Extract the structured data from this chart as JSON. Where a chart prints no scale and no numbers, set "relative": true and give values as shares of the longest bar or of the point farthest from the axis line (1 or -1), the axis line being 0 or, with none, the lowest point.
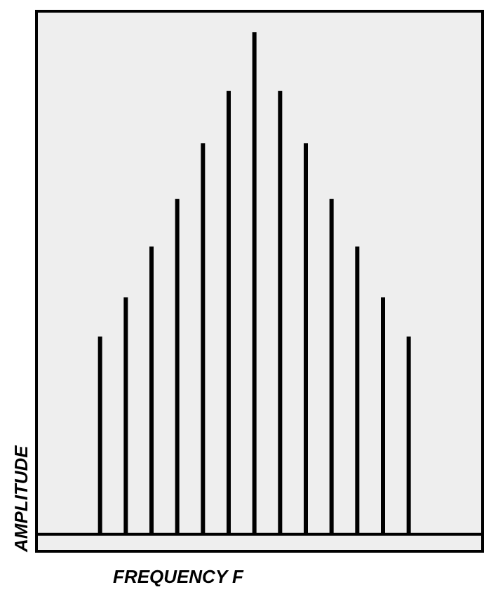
{
  "chart_data": {
    "type": "bar",
    "relative": true,
    "xlabel": "FREQUENCY F",
    "ylabel": "AMPLITUDE",
    "categories": [
      null,
      null,
      null,
      null,
      null,
      null,
      null,
      null,
      null,
      null,
      null,
      null,
      null
    ],
    "values": [
      0.394,
      0.472,
      0.573,
      0.668,
      0.779,
      0.883,
      1,
      0.883,
      0.779,
      0.668,
      0.573,
      0.472,
      0.394
    ],
    "color": "#000000",
    "grid": false
  }
}
